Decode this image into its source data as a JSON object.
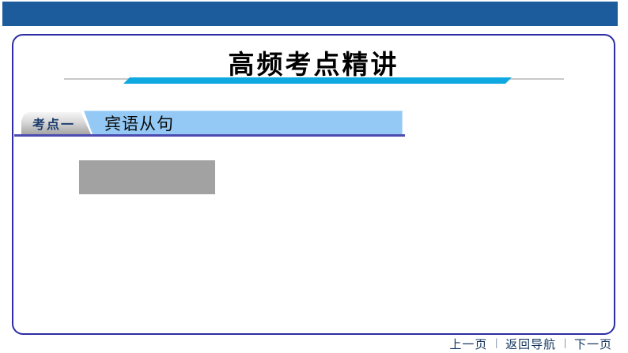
{
  "top_bar": {
    "color": "#1c5c9c"
  },
  "slide": {
    "title": "高频考点精讲",
    "box_border_color": "#2d2da4",
    "accent_cyan": "#10a8e1",
    "divider_gray": "#c9c9c9"
  },
  "section": {
    "badge_label": "考点一",
    "badge_text_color": "#1b3c6e",
    "badge_bg_silver": "#d9d9d9",
    "heading": "宾语从句",
    "bar_color": "#94c9f5",
    "underline_color": "#4b4bb0"
  },
  "placeholder": {
    "color": "#a2a2a2"
  },
  "nav": {
    "prev_label": "上一页",
    "home_label": "返回导航",
    "next_label": "下一页",
    "separator": "|",
    "text_color": "#16365c"
  }
}
